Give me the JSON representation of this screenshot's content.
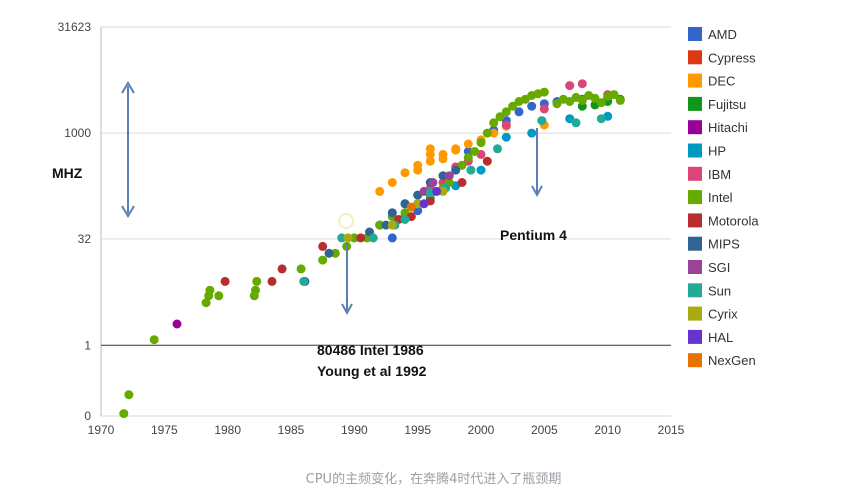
{
  "caption": "CPU的主频变化，在奔腾4时代进入了瓶颈期",
  "chart_data": {
    "type": "scatter",
    "title": "",
    "xlabel": "",
    "ylabel": "MHZ",
    "y_scale": "log10",
    "xlim": [
      1970,
      2015
    ],
    "ylim": [
      0.1,
      31623
    ],
    "x_ticks": [
      1970,
      1975,
      1980,
      1985,
      1990,
      1995,
      2000,
      2005,
      2010,
      2015
    ],
    "y_ticks": [
      {
        "value": 0.1,
        "label": "0"
      },
      {
        "value": 1,
        "label": "1"
      },
      {
        "value": 32,
        "label": "32"
      },
      {
        "value": 1000,
        "label": "1000"
      },
      {
        "value": 31623,
        "label": "31623"
      }
    ],
    "grid": true,
    "legend_position": "right",
    "series": [
      {
        "name": "AMD",
        "color": "#3366cc",
        "points": [
          [
            1993,
            33
          ],
          [
            1995,
            80
          ],
          [
            1997,
            160
          ],
          [
            1999,
            550
          ],
          [
            2001,
            1100
          ],
          [
            2002,
            1500
          ],
          [
            2003,
            2000
          ],
          [
            2004,
            2400
          ],
          [
            2005,
            2600
          ],
          [
            2006,
            2800
          ],
          [
            2008,
            3000
          ],
          [
            2010,
            3200
          ]
        ]
      },
      {
        "name": "Cypress",
        "color": "#dc3912",
        "points": []
      },
      {
        "name": "DEC",
        "color": "#ff9900",
        "points": [
          [
            1992,
            150
          ],
          [
            1993,
            200
          ],
          [
            1994,
            275
          ],
          [
            1995,
            300
          ],
          [
            1995,
            350
          ],
          [
            1996,
            400
          ],
          [
            1996,
            500
          ],
          [
            1996,
            600
          ],
          [
            1997,
            433
          ],
          [
            1997,
            500
          ],
          [
            1998,
            575
          ],
          [
            1998,
            600
          ],
          [
            1999,
            700
          ],
          [
            2000,
            800
          ],
          [
            2001,
            1000
          ],
          [
            2002,
            1250
          ],
          [
            2005,
            1300
          ]
        ]
      },
      {
        "name": "Fujitsu",
        "color": "#109618",
        "points": [
          [
            2008,
            2400
          ],
          [
            2009,
            2500
          ],
          [
            2010,
            2800
          ],
          [
            2011,
            3000
          ]
        ]
      },
      {
        "name": "Hitachi",
        "color": "#990099",
        "points": [
          [
            1976,
            2
          ]
        ]
      },
      {
        "name": "HP",
        "color": "#0099c6",
        "points": [
          [
            1992,
            50
          ],
          [
            1994,
            100
          ],
          [
            1996,
            120
          ],
          [
            1998,
            180
          ],
          [
            2000,
            300
          ],
          [
            2002,
            875
          ],
          [
            2004,
            1000
          ],
          [
            2007,
            1600
          ],
          [
            2010,
            1730
          ]
        ]
      },
      {
        "name": "IBM",
        "color": "#dd4477",
        "points": [
          [
            1994,
            66
          ],
          [
            1995,
            100
          ],
          [
            1996,
            166
          ],
          [
            1997,
            200
          ],
          [
            1998,
            333
          ],
          [
            1999,
            400
          ],
          [
            2000,
            500
          ],
          [
            2002,
            1300
          ],
          [
            2005,
            2200
          ],
          [
            2007,
            4700
          ],
          [
            2008,
            5000
          ],
          [
            2010,
            3500
          ]
        ]
      },
      {
        "name": "Intel",
        "color": "#66aa00",
        "points": [
          [
            1971.8,
            0.108
          ],
          [
            1972.2,
            0.2
          ],
          [
            1974.2,
            1.2
          ],
          [
            1978.3,
            4
          ],
          [
            1978.5,
            5
          ],
          [
            1978.6,
            6
          ],
          [
            1979.3,
            5
          ],
          [
            1982.1,
            5
          ],
          [
            1982.2,
            6
          ],
          [
            1982.3,
            8
          ],
          [
            1985.8,
            12
          ],
          [
            1987.5,
            16
          ],
          [
            1988.5,
            20
          ],
          [
            1989.4,
            25
          ],
          [
            1990,
            33
          ],
          [
            1991,
            33
          ],
          [
            1992,
            50
          ],
          [
            1993,
            66
          ],
          [
            1994,
            75
          ],
          [
            1995,
            100
          ],
          [
            1996,
            133
          ],
          [
            1997,
            166
          ],
          [
            1997.5,
            200
          ],
          [
            1998,
            300
          ],
          [
            1998.5,
            350
          ],
          [
            1999,
            450
          ],
          [
            1999.5,
            550
          ],
          [
            2000,
            733
          ],
          [
            2000.5,
            1000
          ],
          [
            2001,
            1400
          ],
          [
            2001.5,
            1700
          ],
          [
            2002,
            2000
          ],
          [
            2002.5,
            2400
          ],
          [
            2003,
            2800
          ],
          [
            2003.5,
            3000
          ],
          [
            2004,
            3400
          ],
          [
            2004.5,
            3600
          ],
          [
            2005,
            3800
          ],
          [
            2006,
            2600
          ],
          [
            2006.5,
            3000
          ],
          [
            2007,
            2800
          ],
          [
            2007.5,
            3200
          ],
          [
            2008,
            2900
          ],
          [
            2008.5,
            3400
          ],
          [
            2009,
            3100
          ],
          [
            2009.5,
            2700
          ],
          [
            2010,
            3300
          ],
          [
            2010.5,
            3500
          ],
          [
            2011,
            2900
          ]
        ]
      },
      {
        "name": "Motorola",
        "color": "#b82e2e",
        "points": [
          [
            1979.8,
            8
          ],
          [
            1983.5,
            8
          ],
          [
            1984.3,
            12
          ],
          [
            1987.5,
            25
          ],
          [
            1990.5,
            33
          ],
          [
            1993.5,
            60
          ],
          [
            1994.5,
            66
          ],
          [
            1996,
            110
          ],
          [
            1998.5,
            200
          ],
          [
            2000.5,
            400
          ]
        ]
      },
      {
        "name": "MIPS",
        "color": "#316395",
        "points": [
          [
            1986.1,
            8
          ],
          [
            1988,
            20
          ],
          [
            1991.2,
            40
          ],
          [
            1992.5,
            50
          ],
          [
            1993,
            75
          ],
          [
            1994,
            100
          ],
          [
            1995,
            133
          ],
          [
            1996,
            200
          ],
          [
            1997,
            250
          ],
          [
            1998,
            300
          ]
        ]
      },
      {
        "name": "SGI",
        "color": "#994499",
        "points": [
          [
            1995.5,
            150
          ],
          [
            1996.2,
            200
          ],
          [
            1997.5,
            250
          ]
        ]
      },
      {
        "name": "Sun",
        "color": "#22aa99",
        "points": [
          [
            1986,
            8
          ],
          [
            1989,
            33
          ],
          [
            1991.5,
            33
          ],
          [
            1993.2,
            50
          ],
          [
            1994,
            60
          ],
          [
            1995,
            100
          ],
          [
            1996,
            143
          ],
          [
            1997.2,
            167
          ],
          [
            1999.2,
            300
          ],
          [
            2001.3,
            600
          ],
          [
            2004.8,
            1500
          ],
          [
            2007.5,
            1400
          ],
          [
            2009.5,
            1600
          ]
        ]
      },
      {
        "name": "Cyrix",
        "color": "#aaaa11",
        "points": [
          [
            1989.5,
            33
          ],
          [
            1993,
            50
          ],
          [
            1995,
            100
          ],
          [
            1997,
            150
          ]
        ]
      },
      {
        "name": "HAL",
        "color": "#6633cc",
        "points": [
          [
            1995.5,
            100
          ],
          [
            1996.5,
            150
          ]
        ]
      },
      {
        "name": "NexGen",
        "color": "#e67300",
        "points": [
          [
            1994.5,
            90
          ]
        ]
      }
    ],
    "annotations": [
      {
        "lines": [
          "80486 Intel 1986",
          "Young et al 1992"
        ]
      },
      {
        "lines": [
          "Pentium 4"
        ]
      }
    ]
  }
}
